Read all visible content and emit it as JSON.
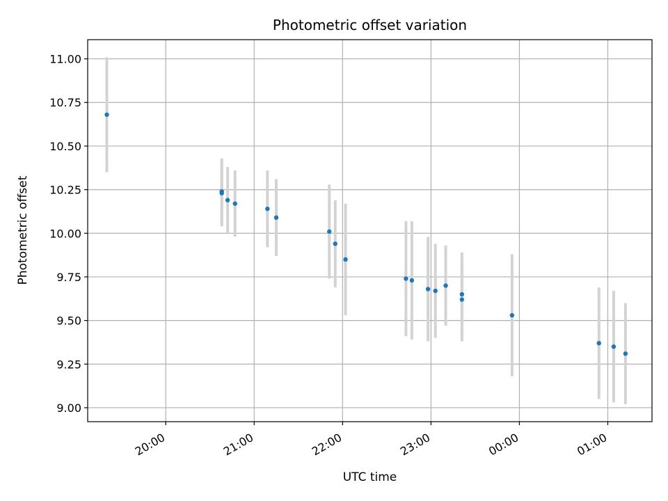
{
  "chart_data": {
    "type": "scatter",
    "title": "Photometric offset variation",
    "xlabel": "UTC time",
    "ylabel": "Photometric offset",
    "grid": true,
    "legend": "none",
    "x_is_time": true,
    "xlim": [
      "19:07",
      "01:30"
    ],
    "ylim": [
      8.92,
      11.11
    ],
    "x_ticks": [
      "20:00",
      "21:00",
      "22:00",
      "23:00",
      "00:00",
      "01:00"
    ],
    "y_ticks": [
      "9.00",
      "9.25",
      "9.50",
      "9.75",
      "10.00",
      "10.25",
      "10.50",
      "10.75",
      "11.00"
    ],
    "colors": {
      "point": "#1f77b4",
      "errorbar": "#d3d3d3",
      "grid": "#b0b0b0"
    },
    "series": [
      {
        "points": [
          {
            "time": "19:20",
            "y": 10.68,
            "err": 0.33
          },
          {
            "time": "20:38",
            "y": 10.24,
            "err": 0.19
          },
          {
            "time": "20:38",
            "y": 10.23,
            "err": 0.19
          },
          {
            "time": "20:42",
            "y": 10.19,
            "err": 0.19
          },
          {
            "time": "20:47",
            "y": 10.17,
            "err": 0.19
          },
          {
            "time": "21:09",
            "y": 10.14,
            "err": 0.22
          },
          {
            "time": "21:15",
            "y": 10.09,
            "err": 0.22
          },
          {
            "time": "21:51",
            "y": 10.01,
            "err": 0.27
          },
          {
            "time": "21:55",
            "y": 9.94,
            "err": 0.25
          },
          {
            "time": "22:02",
            "y": 9.85,
            "err": 0.32
          },
          {
            "time": "22:43",
            "y": 9.74,
            "err": 0.33
          },
          {
            "time": "22:47",
            "y": 9.73,
            "err": 0.34
          },
          {
            "time": "22:58",
            "y": 9.68,
            "err": 0.3
          },
          {
            "time": "23:03",
            "y": 9.67,
            "err": 0.27
          },
          {
            "time": "23:10",
            "y": 9.7,
            "err": 0.23
          },
          {
            "time": "23:21",
            "y": 9.65,
            "err": 0.24
          },
          {
            "time": "23:21",
            "y": 9.62,
            "err": 0.24
          },
          {
            "time": "23:55",
            "y": 9.53,
            "err": 0.35
          },
          {
            "time": "00:54",
            "y": 9.37,
            "err": 0.32
          },
          {
            "time": "01:04",
            "y": 9.35,
            "err": 0.32
          },
          {
            "time": "01:12",
            "y": 9.31,
            "err": 0.29
          }
        ]
      }
    ]
  }
}
